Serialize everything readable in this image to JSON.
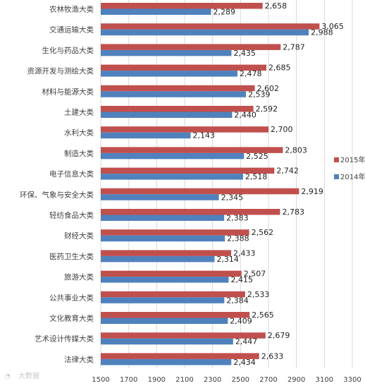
{
  "chart_data": {
    "type": "bar",
    "orientation": "horizontal",
    "categories": [
      "农林牧渔大类",
      "交通运输大类",
      "生化与药品大类",
      "资源开发与测绘大类",
      "材料与能源大类",
      "土建大类",
      "水利大类",
      "制造大类",
      "电子信息大类",
      "环保、气象与安全大类",
      "轻纺食品大类",
      "财经大类",
      "医药卫生大类",
      "旅游大类",
      "公共事业大类",
      "文化教育大类",
      "艺术设计传媒大类",
      "法律大类"
    ],
    "series": [
      {
        "name": "2015年",
        "color": "#c0504d",
        "values": [
          2658,
          3065,
          2787,
          2685,
          2602,
          2592,
          2700,
          2803,
          2742,
          2919,
          2783,
          2562,
          2433,
          2507,
          2533,
          2565,
          2679,
          2633
        ],
        "labels": [
          "2,658",
          "3,065",
          "2,787",
          "2,685",
          "2,602",
          "2,592",
          "2,700",
          "2,803",
          "2,742",
          "2,919",
          "2,783",
          "2,562",
          "2,433",
          "2,507",
          "2,533",
          "2,565",
          "2,679",
          "2,633"
        ]
      },
      {
        "name": "2014年",
        "color": "#4f81bd",
        "values": [
          2289,
          2988,
          2435,
          2478,
          2539,
          2440,
          2143,
          2525,
          2518,
          2345,
          2383,
          2388,
          2314,
          2415,
          2384,
          2409,
          2447,
          2434
        ],
        "labels": [
          "2,289",
          "2,988",
          "2,435",
          "2,478",
          "2,539",
          "2,440",
          "2,143",
          "2,525",
          "2,518",
          "2,345",
          "2,383",
          "2,388",
          "2,314",
          "2,415",
          "2,384",
          "2,409",
          "2,447",
          "2,434"
        ]
      }
    ],
    "xlim": [
      1500,
      3300
    ],
    "xticks": [
      1500,
      1700,
      1900,
      2100,
      2300,
      2500,
      2700,
      2900,
      3100,
      3300
    ],
    "grid": true,
    "legend_position": "right"
  },
  "watermark": "大数据"
}
